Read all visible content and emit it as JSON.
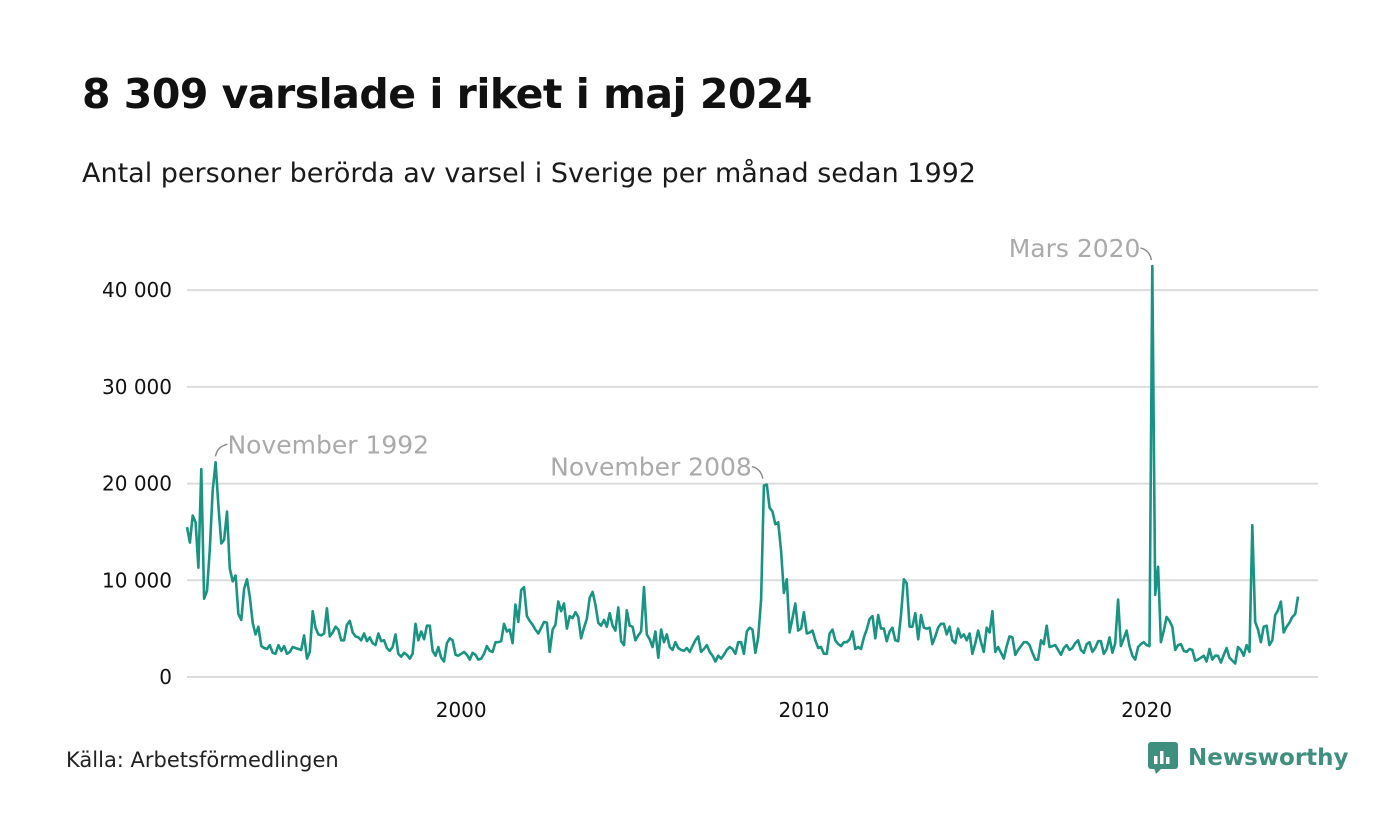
{
  "header": {
    "title": "8 309 varslade i riket i maj 2024",
    "subtitle": "Antal personer berörda av varsel i Sverige per månad sedan 1992"
  },
  "footer": {
    "source": "Källa: Arbetsförmedlingen",
    "brand": "Newsworthy"
  },
  "colors": {
    "line": "#1a9482",
    "grid": "#dcdcdc",
    "annotation": "#aaaaaa",
    "brand": "#3f8f7f"
  },
  "chart_data": {
    "type": "line",
    "title": "8 309 varslade i riket i maj 2024",
    "subtitle": "Antal personer berörda av varsel i Sverige per månad sedan 1992",
    "x_start": "1992-01",
    "x_end": "2024-05",
    "xlim": [
      1992.0,
      2025.0
    ],
    "ylim": [
      0,
      42500
    ],
    "x_ticks": [
      {
        "value": 2000,
        "label": "2000"
      },
      {
        "value": 2010,
        "label": "2010"
      },
      {
        "value": 2020,
        "label": "2020"
      }
    ],
    "y_ticks": [
      {
        "value": 0,
        "label": "0"
      },
      {
        "value": 10000,
        "label": "10 000"
      },
      {
        "value": 20000,
        "label": "20 000"
      },
      {
        "value": 30000,
        "label": "30 000"
      },
      {
        "value": 40000,
        "label": "40 000"
      }
    ],
    "grid": true,
    "annotations": [
      {
        "label": "November 1992",
        "x": 1992.83,
        "y": 22200
      },
      {
        "label": "November 2008",
        "x": 2008.83,
        "y": 19900
      },
      {
        "label": "Mars 2020",
        "x": 2020.17,
        "y": 42500
      }
    ],
    "series": [
      {
        "values": [
          15500,
          13900,
          16700,
          16000,
          11300,
          21500,
          8100,
          8900,
          13200,
          19300,
          22200,
          17700,
          13800,
          14200,
          17100,
          11200,
          9900,
          10500,
          6500,
          5900,
          9100,
          10100,
          8300,
          5600,
          4400,
          5200,
          3200,
          3000,
          2900,
          3300,
          2500,
          2400,
          3300,
          2700,
          3200,
          2400,
          2600,
          3100,
          3000,
          2900,
          2800,
          4300,
          1900,
          2600,
          6800,
          5100,
          4400,
          4300,
          4500,
          7100,
          4200,
          4600,
          5200,
          4900,
          3800,
          3800,
          5400,
          5800,
          4600,
          4200,
          4100,
          3800,
          4500,
          3700,
          4100,
          3500,
          3300,
          4500,
          3700,
          3800,
          3000,
          2700,
          3100,
          4400,
          2400,
          2100,
          2500,
          2300,
          1900,
          2400,
          5500,
          3800,
          4700,
          3900,
          5300,
          5300,
          2700,
          2200,
          3100,
          2000,
          1600,
          3500,
          4000,
          3800,
          2300,
          2200,
          2400,
          2600,
          2300,
          1800,
          2500,
          2300,
          1800,
          1900,
          2400,
          3200,
          2700,
          2600,
          3600,
          3600,
          3700,
          5500,
          4700,
          4900,
          3500,
          7500,
          5700,
          9000,
          9300,
          6300,
          5800,
          5400,
          4900,
          4500,
          5100,
          5700,
          5600,
          2600,
          4900,
          5400,
          7800,
          6800,
          7600,
          5000,
          6300,
          6100,
          6700,
          6200,
          4000,
          5100,
          6000,
          8200,
          8800,
          7500,
          5600,
          5300,
          5900,
          5200,
          6600,
          5300,
          4800,
          7200,
          3700,
          3300,
          6900,
          5300,
          5200,
          3800,
          4300,
          4700,
          9300,
          4400,
          3900,
          3100,
          4700,
          2000,
          4900,
          3600,
          4400,
          3100,
          2800,
          3600,
          3000,
          2800,
          2700,
          3000,
          2600,
          3200,
          3800,
          4200,
          2600,
          2900,
          3300,
          2600,
          2200,
          1600,
          2200,
          1900,
          2300,
          2800,
          3100,
          2900,
          2400,
          3600,
          3600,
          2400,
          4700,
          5100,
          4900,
          2500,
          4100,
          8000,
          19800,
          19900,
          17500,
          17100,
          15800,
          16000,
          13000,
          8700,
          10100,
          4600,
          6100,
          7600,
          4800,
          5000,
          6700,
          4500,
          4600,
          4800,
          3800,
          3000,
          3100,
          2400,
          2400,
          4500,
          4900,
          3800,
          3400,
          3200,
          3600,
          3600,
          3900,
          4700,
          2900,
          3100,
          2900,
          4100,
          4900,
          6000,
          6300,
          4000,
          6400,
          5000,
          5000,
          3700,
          4700,
          5100,
          3800,
          3700,
          6400,
          10100,
          9700,
          5200,
          5200,
          6600,
          3900,
          6400,
          5100,
          5000,
          5100,
          3400,
          4200,
          5100,
          5500,
          5500,
          4400,
          5200,
          3800,
          3500,
          5000,
          4100,
          4400,
          3800,
          4500,
          2400,
          3500,
          4800,
          3600,
          2600,
          5100,
          4600,
          6800,
          2600,
          3100,
          2500,
          1900,
          3200,
          4200,
          4100,
          2300,
          2800,
          3200,
          3600,
          3600,
          3300,
          2500,
          1800,
          1800,
          3800,
          3400,
          5300,
          3100,
          3200,
          3300,
          2800,
          2300,
          3000,
          3300,
          2800,
          3000,
          3500,
          3800,
          2800,
          2500,
          3400,
          3600,
          2600,
          3000,
          3700,
          3700,
          2400,
          2900,
          4100,
          2500,
          3500,
          8000,
          3200,
          4000,
          4800,
          3200,
          2200,
          1800,
          3100,
          3400,
          3600,
          3300,
          3200,
          42500,
          8500,
          11400,
          3600,
          4800,
          6200,
          5800,
          5200,
          2800,
          3300,
          3400,
          2700,
          2600,
          2900,
          2800,
          1700,
          1800,
          2000,
          2200,
          1600,
          2900,
          1800,
          2200,
          2200,
          1500,
          2300,
          3000,
          2000,
          1700,
          1400,
          3100,
          2800,
          2200,
          3300,
          2600,
          15700,
          5700,
          4900,
          3600,
          5200,
          5300,
          3300,
          3800,
          6400,
          6900,
          7800,
          4600,
          5200,
          5600,
          6200,
          6500,
          8309
        ]
      }
    ]
  }
}
